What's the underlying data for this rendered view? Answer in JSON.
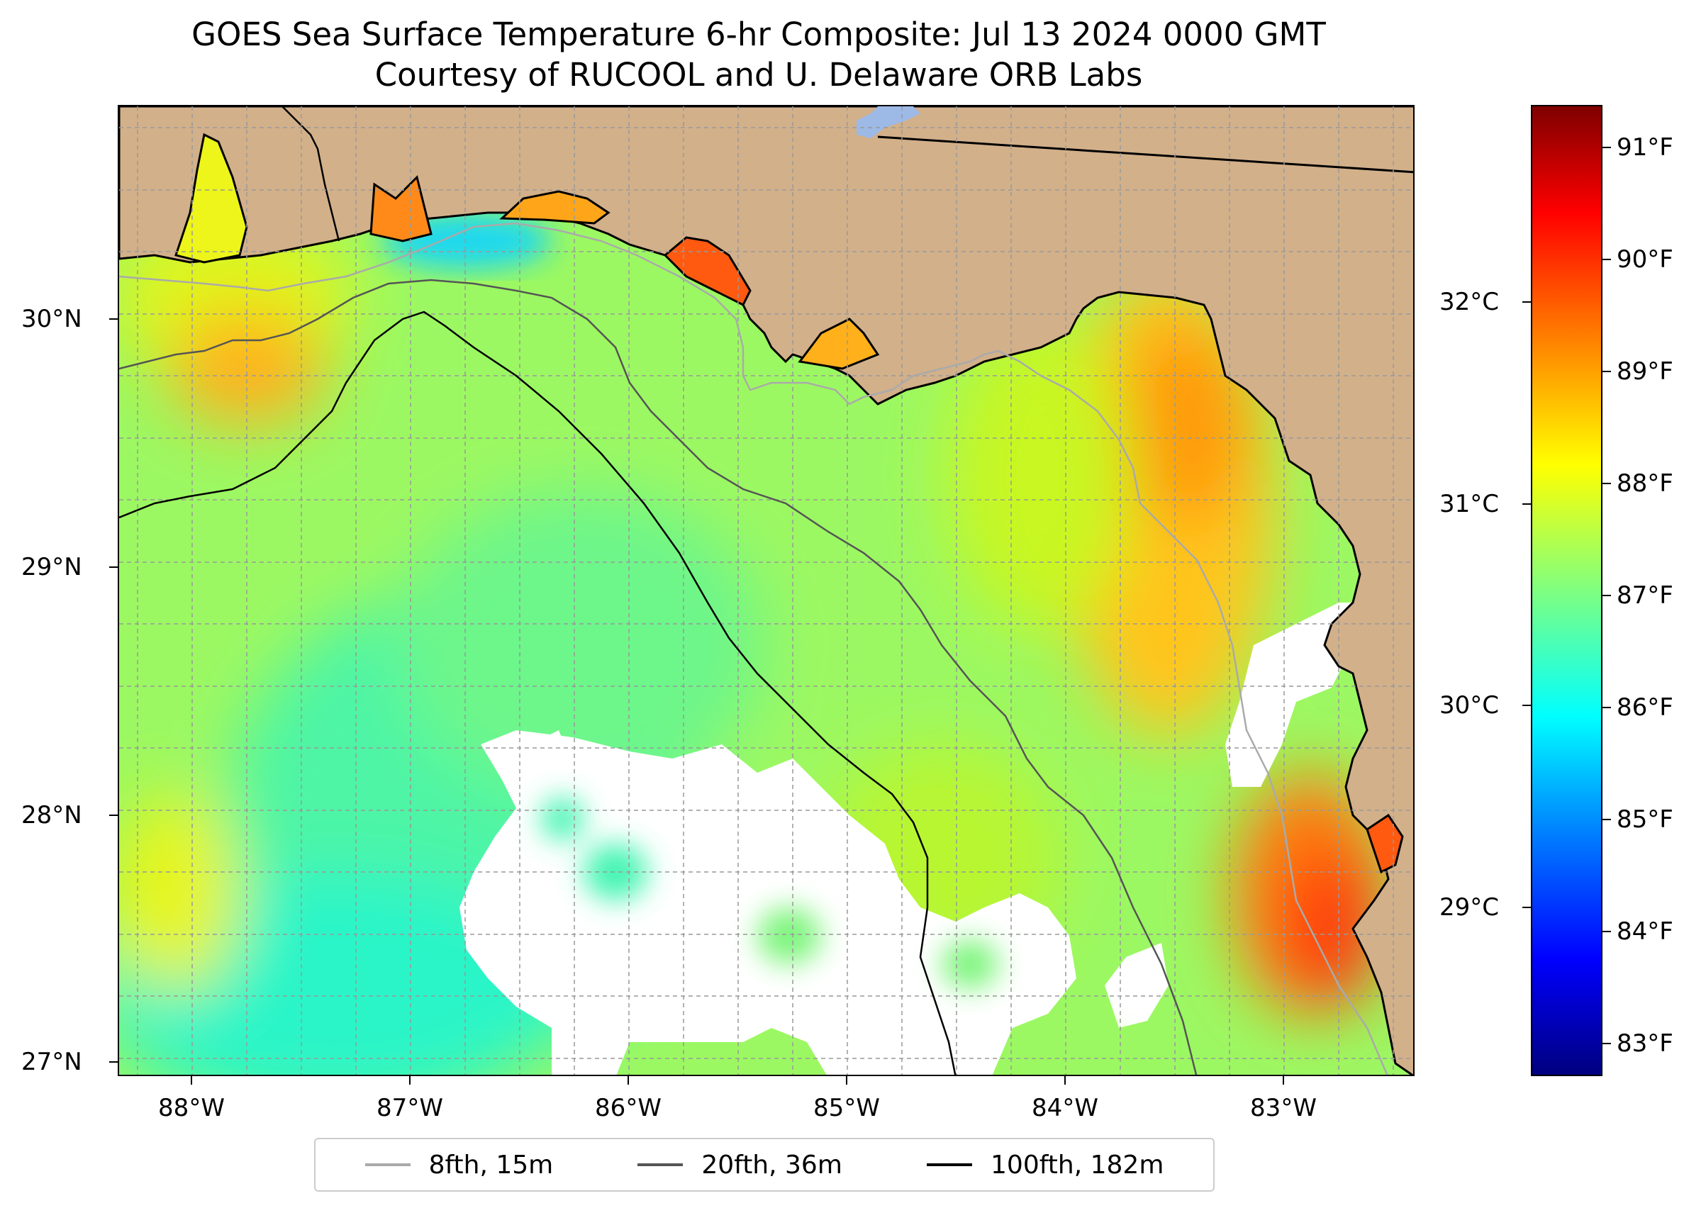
{
  "title": "GOES Sea Surface Temperature 6-hr Composite: Jul 13 2024 0000 GMT",
  "subtitle": "Courtesy of RUCOOL and U. Delaware ORB Labs",
  "map": {
    "lon_range": [
      -88.33,
      -82.4
    ],
    "lat_range": [
      26.94,
      30.86
    ],
    "land_color": "#D2B08A",
    "ocean_nodata_color": "#ffffff",
    "lakes_color": "#9DB9E6",
    "x_ticks": [
      {
        "lon": -88,
        "label": "88°W"
      },
      {
        "lon": -87,
        "label": "87°W"
      },
      {
        "lon": -86,
        "label": "86°W"
      },
      {
        "lon": -85,
        "label": "85°W"
      },
      {
        "lon": -84,
        "label": "84°W"
      },
      {
        "lon": -83,
        "label": "83°W"
      }
    ],
    "y_ticks": [
      {
        "lat": 30,
        "label": "30°N"
      },
      {
        "lat": 29,
        "label": "29°N"
      },
      {
        "lat": 28,
        "label": "28°N"
      },
      {
        "lat": 27,
        "label": "27°N"
      }
    ]
  },
  "colorbar": {
    "colormap": "jet",
    "celsius_ticks": [
      {
        "value": 32,
        "label": "32°C"
      },
      {
        "value": 31,
        "label": "31°C"
      },
      {
        "value": 30,
        "label": "30°C"
      },
      {
        "value": 29,
        "label": "29°C"
      }
    ],
    "fahrenheit_ticks": [
      {
        "value": 91,
        "label": "91°F"
      },
      {
        "value": 90,
        "label": "90°F"
      },
      {
        "value": 89,
        "label": "89°F"
      },
      {
        "value": 88,
        "label": "88°F"
      },
      {
        "value": 87,
        "label": "87°F"
      },
      {
        "value": 86,
        "label": "86°F"
      },
      {
        "value": 85,
        "label": "85°F"
      },
      {
        "value": 84,
        "label": "84°F"
      },
      {
        "value": 83,
        "label": "83°F"
      }
    ]
  },
  "legend": [
    {
      "label": "8fth, 15m",
      "color": "#aaaaaa"
    },
    {
      "label": "20fth, 36m",
      "color": "#555555"
    },
    {
      "label": "100fth, 182m",
      "color": "#000000"
    }
  ]
}
